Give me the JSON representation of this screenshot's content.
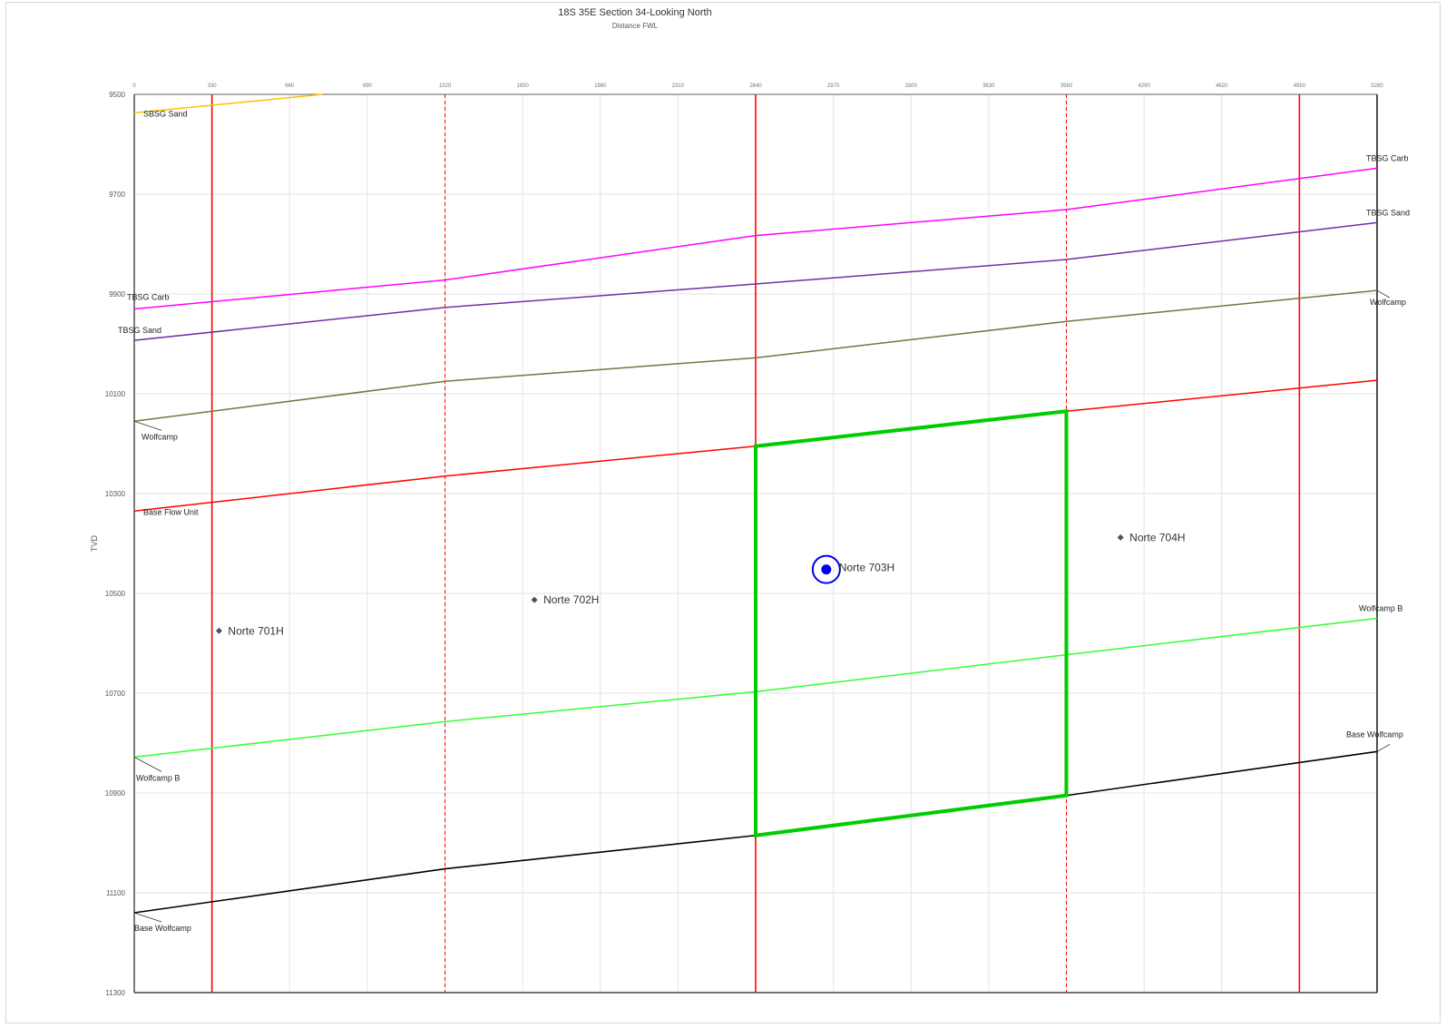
{
  "header": {
    "title": "18S 35E Section 34-Looking North",
    "subtitle": "Distance FWL"
  },
  "chart_data": {
    "type": "line",
    "title": "18S 35E Section 34-Looking North",
    "xlabel": "Distance FWL",
    "ylabel": "TVD",
    "xlim": [
      0,
      5280
    ],
    "ylim": [
      9500,
      11300
    ],
    "y_inverted": true,
    "grid": true,
    "x_ticks": [
      0,
      330,
      660,
      990,
      1320,
      1650,
      1980,
      2310,
      2640,
      2970,
      3300,
      3630,
      3960,
      4290,
      4620,
      4950,
      5280
    ],
    "x_tick_labels": [
      "0",
      "330",
      "660",
      "990",
      "1320",
      "1650",
      "1980",
      "2310",
      "2640",
      "2970",
      "3300",
      "3630",
      "3960",
      "4290",
      "4620",
      "4950",
      "5280"
    ],
    "y_ticks": [
      9500,
      9700,
      9900,
      10100,
      10300,
      10500,
      10700,
      10900,
      11100,
      11300
    ],
    "y_tick_labels": [
      "9500",
      "9700",
      "9900",
      "10100",
      "10300",
      "10500",
      "10700",
      "10900",
      "11100",
      "11300"
    ],
    "vertical_lines": [
      {
        "x": 330,
        "style": "solid",
        "color": "#ff0000"
      },
      {
        "x": 1320,
        "style": "dashed",
        "color": "#ff0000"
      },
      {
        "x": 2640,
        "style": "solid",
        "color": "#ff0000"
      },
      {
        "x": 3960,
        "style": "dashed",
        "color": "#ff0000"
      },
      {
        "x": 4950,
        "style": "solid",
        "color": "#ff0000"
      }
    ],
    "series": [
      {
        "name": "SBSG Sand",
        "color": "#ffc000",
        "x": [
          0,
          800
        ],
        "y": [
          9537,
          9500
        ]
      },
      {
        "name": "TBSG Carb",
        "color": "#ff00ff",
        "x": [
          0,
          1320,
          2640,
          3960,
          5280
        ],
        "y": [
          9930,
          9872,
          9783,
          9731,
          9648
        ]
      },
      {
        "name": "TBSG Sand",
        "color": "#7030a0",
        "x": [
          0,
          1320,
          2640,
          3960,
          5280
        ],
        "y": [
          9993,
          9927,
          9880,
          9831,
          9757
        ]
      },
      {
        "name": "Wolfcamp",
        "color": "#6b7b3e",
        "x": [
          0,
          1320,
          2640,
          3960,
          5280
        ],
        "y": [
          10155,
          10075,
          10028,
          9955,
          9893
        ]
      },
      {
        "name": "Base Flow Unit",
        "color": "#ff0000",
        "x": [
          0,
          1320,
          2640,
          3960,
          5280
        ],
        "y": [
          10335,
          10265,
          10205,
          10135,
          10073
        ]
      },
      {
        "name": "Wolfcamp B",
        "color": "#33ff33",
        "x": [
          0,
          1320,
          2640,
          3960,
          5280
        ],
        "y": [
          10828,
          10757,
          10697,
          10623,
          10550
        ]
      },
      {
        "name": "Base Wolfcamp",
        "color": "#000000",
        "x": [
          0,
          1320,
          2640,
          3960,
          5280
        ],
        "y": [
          11140,
          11052,
          10985,
          10905,
          10817
        ]
      }
    ],
    "left_labels": [
      {
        "text": "SBSG Sand",
        "series": "SBSG Sand"
      },
      {
        "text": "TBSG Carb",
        "series": "TBSG Carb"
      },
      {
        "text": "TBSG Sand",
        "series": "TBSG Sand"
      },
      {
        "text": "Wolfcamp",
        "series": "Wolfcamp"
      },
      {
        "text": "Base Flow Unit",
        "series": "Base Flow Unit"
      },
      {
        "text": "Wolfcamp B",
        "series": "Wolfcamp B"
      },
      {
        "text": "Base Wolfcamp",
        "series": "Base Wolfcamp"
      }
    ],
    "right_labels": [
      {
        "text": "TBSG Carb",
        "series": "TBSG Carb"
      },
      {
        "text": "TBSG Sand",
        "series": "TBSG Sand"
      },
      {
        "text": "Wolfcamp",
        "series": "Wolfcamp"
      },
      {
        "text": "Wolfcamp B",
        "series": "Wolfcamp B"
      },
      {
        "text": "Base Wolfcamp",
        "series": "Base Wolfcamp"
      }
    ],
    "target_box": {
      "color": "#00cc00",
      "corners": [
        [
          2640,
          10205
        ],
        [
          3960,
          10135
        ],
        [
          3960,
          10905
        ],
        [
          2640,
          10985
        ]
      ]
    },
    "wells": [
      {
        "name": "Norte 701H",
        "x": 360,
        "y": 10575,
        "highlight": false
      },
      {
        "name": "Norte 702H",
        "x": 1700,
        "y": 10513,
        "highlight": false
      },
      {
        "name": "Norte 703H",
        "x": 2940,
        "y": 10452,
        "highlight": true
      },
      {
        "name": "Norte 704H",
        "x": 4190,
        "y": 10388,
        "highlight": false
      }
    ]
  }
}
